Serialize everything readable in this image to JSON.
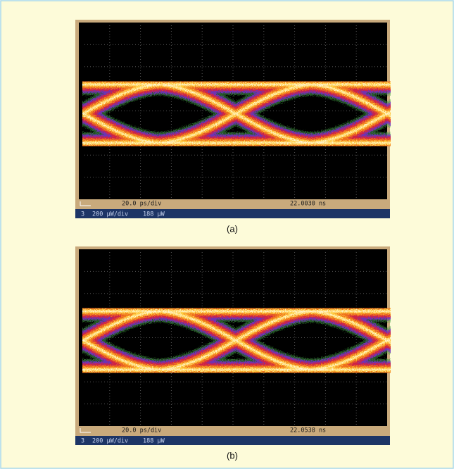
{
  "panels": [
    {
      "time_scale": "20.0 ps/div",
      "time_position": "22.0030 ns",
      "channel": "3",
      "volt_scale": "200 µW/div",
      "offset": "188 µW",
      "caption": "(a)"
    },
    {
      "time_scale": "20.0 ps/div",
      "time_position": "22.0538 ns",
      "channel": "3",
      "volt_scale": "200 µW/div",
      "offset": "188 µW",
      "caption": "(b)"
    }
  ]
}
